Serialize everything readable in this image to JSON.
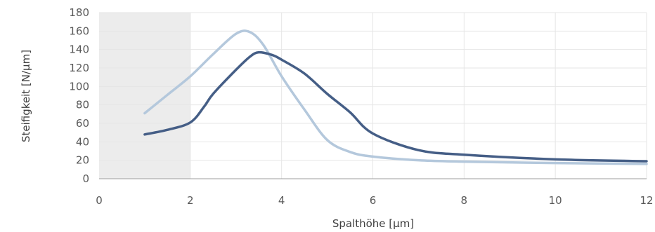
{
  "chart_data": {
    "type": "line",
    "title": "",
    "xlabel": "Spalthöhe [µm]",
    "ylabel": "Steifigkeit [N/µm]",
    "xlim": [
      0,
      12
    ],
    "ylim": [
      0,
      180
    ],
    "x_ticks": [
      "0",
      "2",
      "4",
      "6",
      "8",
      "10",
      "12"
    ],
    "y_ticks": [
      "0",
      "20",
      "40",
      "60",
      "80",
      "100",
      "120",
      "140",
      "160",
      "180"
    ],
    "grid": true,
    "shaded_region": {
      "x_start": 0,
      "x_end": 2,
      "color": "#ececec"
    },
    "series": [
      {
        "color": "#b4c8dc",
        "x": [
          1.0,
          1.5,
          2.0,
          2.5,
          3.0,
          3.3,
          3.6,
          4.0,
          4.5,
          5.0,
          5.5,
          6.0,
          7.0,
          8.0,
          10.0,
          12.0
        ],
        "y": [
          71,
          91,
          111,
          135,
          157,
          159,
          145,
          111,
          75,
          42,
          29,
          24,
          20,
          18.5,
          17,
          16
        ]
      },
      {
        "color": "#455e86",
        "x": [
          1.0,
          1.5,
          2.0,
          2.3,
          2.5,
          3.0,
          3.3,
          3.5,
          3.8,
          4.0,
          4.5,
          5.0,
          5.5,
          6.0,
          7.0,
          8.0,
          10.0,
          12.0
        ],
        "y": [
          48,
          53,
          61,
          78,
          92,
          118,
          132,
          137,
          134,
          129,
          114,
          92,
          72,
          49,
          31,
          26,
          21,
          19
        ]
      }
    ]
  }
}
